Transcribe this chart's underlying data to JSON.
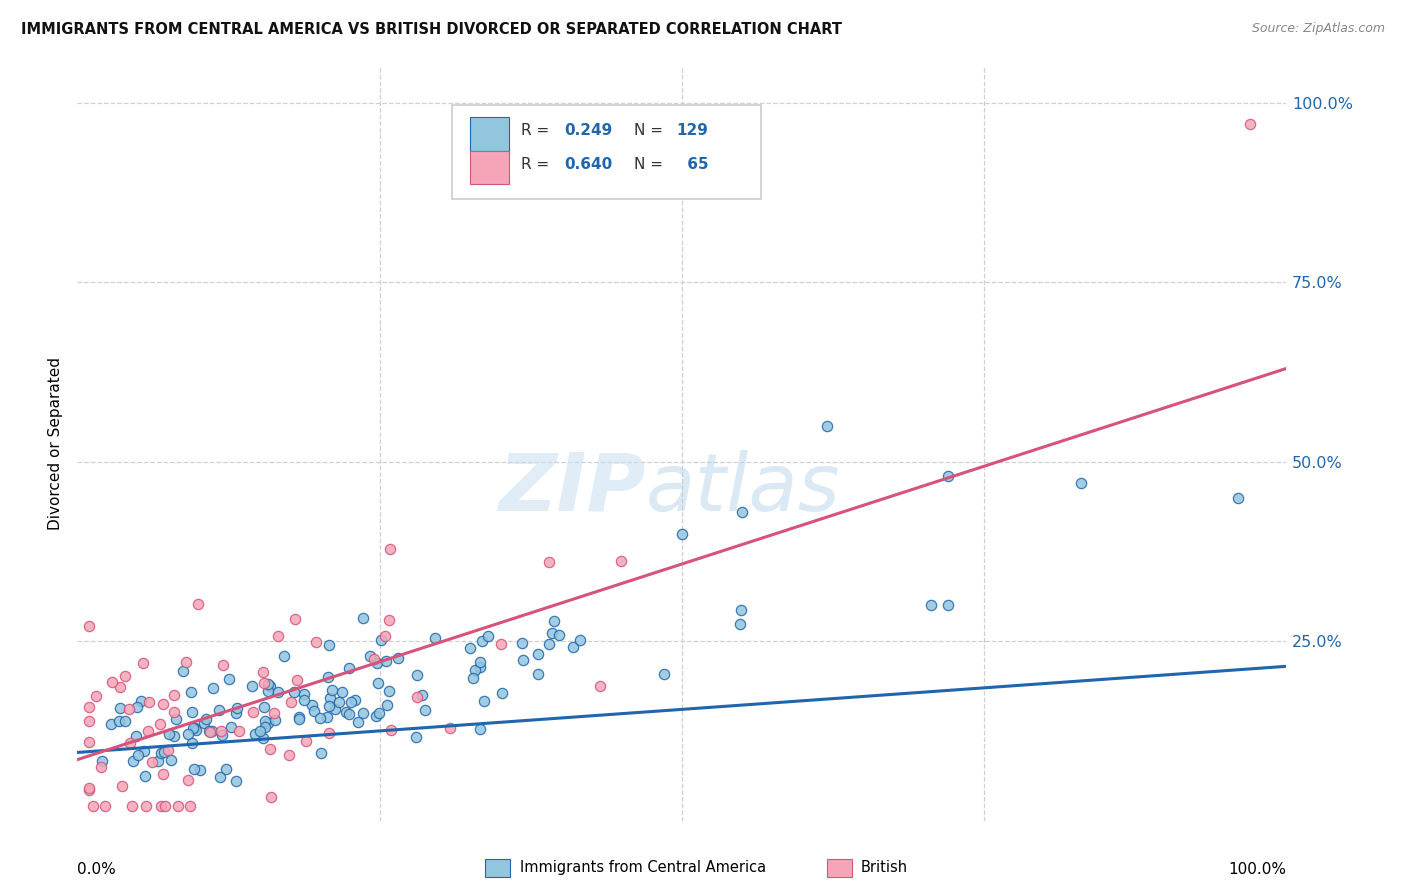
{
  "title": "IMMIGRANTS FROM CENTRAL AMERICA VS BRITISH DIVORCED OR SEPARATED CORRELATION CHART",
  "source": "Source: ZipAtlas.com",
  "ylabel": "Divorced or Separated",
  "legend_label1": "Immigrants from Central America",
  "legend_label2": "British",
  "r1": 0.249,
  "n1": 129,
  "r2": 0.64,
  "n2": 65,
  "color_blue": "#92c5de",
  "color_pink": "#f4a6b8",
  "line_blue": "#2166ac",
  "line_pink": "#d6537a",
  "bg_color": "#ffffff",
  "grid_color": "#d0d0d0",
  "y_tick_labels": [
    "100.0%",
    "75.0%",
    "50.0%",
    "25.0%"
  ],
  "y_tick_positions": [
    1.0,
    0.75,
    0.5,
    0.25
  ],
  "watermark_zip": "ZIP",
  "watermark_atlas": "atlas",
  "seed_blue": 42,
  "seed_pink": 7
}
